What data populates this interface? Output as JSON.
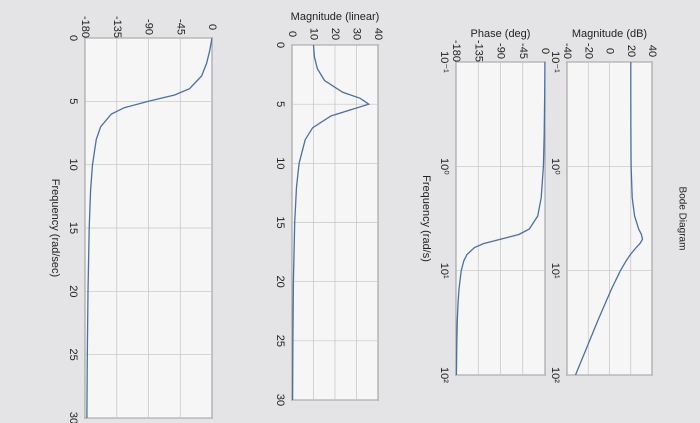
{
  "chart_data": [
    {
      "type": "line",
      "title": "Bode Diagram",
      "y_label": "Magnitude (dB)",
      "xscale": "log",
      "grid": true,
      "color": "#4a6fa5",
      "xlim": [
        0.1,
        100
      ],
      "ylim": [
        -40,
        40
      ],
      "xticks": [
        {
          "value": 0.1,
          "label": "10⁻¹"
        },
        {
          "value": 1,
          "label": "10⁰"
        },
        {
          "value": 10,
          "label": "10¹"
        },
        {
          "value": 100,
          "label": "10²"
        }
      ],
      "yticks": [
        -40,
        -20,
        0,
        20,
        40
      ],
      "x": [
        0.1,
        0.2,
        0.5,
        1,
        2,
        3,
        4,
        4.5,
        5,
        5.5,
        6,
        7,
        8,
        10,
        15,
        20,
        30,
        50,
        100
      ],
      "values": [
        20.0,
        20.0,
        20.1,
        20.3,
        21.4,
        23.6,
        27.5,
        30.0,
        31.1,
        28.6,
        25.1,
        19.7,
        15.8,
        10.3,
        1.9,
        -3.5,
        -10.9,
        -19.9,
        -32.0
      ]
    },
    {
      "type": "line",
      "y_label": "Phase (deg)",
      "x_label": "Frequency (rad/s)",
      "xscale": "log",
      "grid": true,
      "color": "#4a6fa5",
      "xlim": [
        0.1,
        100
      ],
      "ylim": [
        -180,
        0
      ],
      "xticks": [
        {
          "value": 0.1,
          "label": "10⁻¹"
        },
        {
          "value": 1,
          "label": "10⁰"
        },
        {
          "value": 10,
          "label": "10¹"
        },
        {
          "value": 100,
          "label": "10²"
        }
      ],
      "yticks": [
        -180,
        -135,
        -90,
        -45,
        0
      ],
      "x": [
        0.1,
        0.2,
        0.5,
        1,
        2,
        3,
        4,
        4.5,
        5,
        5.5,
        6,
        7,
        8,
        10,
        15,
        20,
        30,
        50,
        100
      ],
      "values": [
        -0.3,
        -0.6,
        -1.6,
        -3.3,
        -7.6,
        -14.7,
        -31.9,
        -53,
        -90,
        -124.3,
        -142.6,
        -157.8,
        -164,
        -169.4,
        -174,
        -175.7,
        -177.3,
        -178.4,
        -179.2
      ]
    },
    {
      "type": "line",
      "y_label": "Magnitude (linear)",
      "grid": true,
      "color": "#4a6fa5",
      "xlim": [
        0,
        30
      ],
      "ylim": [
        0,
        40
      ],
      "xticks": [
        0,
        5,
        10,
        15,
        20,
        25,
        30
      ],
      "yticks": [
        0,
        10,
        20,
        30,
        40
      ],
      "x": [
        0,
        1,
        2,
        3,
        4,
        4.5,
        5,
        5.5,
        6,
        7,
        8,
        10,
        12,
        15,
        20,
        25,
        30
      ],
      "values": [
        10,
        10.4,
        11.8,
        15.1,
        23.6,
        31.7,
        35.7,
        26.8,
        18.1,
        9.6,
        6.16,
        3.28,
        2.08,
        1.24,
        0.665,
        0.416,
        0.285
      ]
    },
    {
      "type": "line",
      "x_label": "Frequency (rad/sec)",
      "grid": true,
      "color": "#4a6fa5",
      "xlim": [
        0,
        30
      ],
      "ylim": [
        -180,
        0
      ],
      "xticks": [
        0,
        5,
        10,
        15,
        20,
        25,
        30
      ],
      "yticks": [
        -180,
        -135,
        -90,
        -45,
        0
      ],
      "x": [
        0,
        1,
        2,
        3,
        4,
        4.5,
        5,
        5.5,
        6,
        7,
        8,
        10,
        12,
        15,
        20,
        25,
        30
      ],
      "values": [
        0,
        -3.3,
        -7.6,
        -14.7,
        -31.9,
        -53,
        -90,
        -124.3,
        -142.6,
        -157.8,
        -164,
        -169.4,
        -172,
        -174,
        -175.7,
        -176.7,
        -177.3
      ]
    }
  ]
}
